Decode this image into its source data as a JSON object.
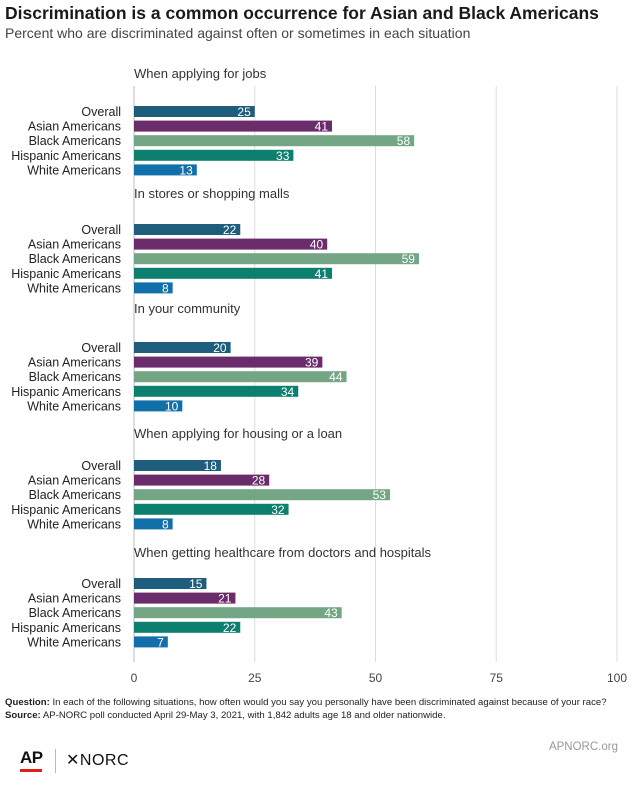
{
  "header": {
    "title": "Discrimination is a common occurrence for Asian and Black Americans",
    "subtitle": "Percent who are discriminated against often or sometimes in each situation"
  },
  "chart_data": {
    "type": "bar",
    "orientation": "horizontal",
    "xlim": [
      0,
      100
    ],
    "xticks": [
      0,
      25,
      50,
      75,
      100
    ],
    "grid": true,
    "data_labels": true,
    "categories": [
      "Overall",
      "Asian Americans",
      "Black Americans",
      "Hispanic Americans",
      "White Americans"
    ],
    "colors": {
      "Overall": "#1e5d7c",
      "Asian Americans": "#6b2c6b",
      "Black Americans": "#74a685",
      "Hispanic Americans": "#0d7f6f",
      "White Americans": "#1170aa"
    },
    "groups": [
      {
        "label": "When applying for jobs",
        "values": [
          25,
          41,
          58,
          33,
          13
        ]
      },
      {
        "label": "In stores or shopping malls",
        "values": [
          22,
          40,
          59,
          41,
          8
        ]
      },
      {
        "label": "In your community",
        "values": [
          20,
          39,
          44,
          34,
          10
        ]
      },
      {
        "label": "When applying for housing or a loan",
        "values": [
          18,
          28,
          53,
          32,
          8
        ]
      },
      {
        "label": "When getting healthcare from doctors and hospitals",
        "values": [
          15,
          21,
          43,
          22,
          7
        ]
      }
    ]
  },
  "notes": {
    "question_label": "Question:",
    "question_text": " In each of the following situations, how often would you say you personally have been discriminated against because of your race?",
    "source_label": "Source:",
    "source_text": " AP-NORC poll conducted April 29-May 3, 2021, with 1,842 adults age 18 and older nationwide."
  },
  "footer": {
    "logo_ap": "AP",
    "logo_norc": "✕NORC",
    "url": "APNORC.org"
  }
}
